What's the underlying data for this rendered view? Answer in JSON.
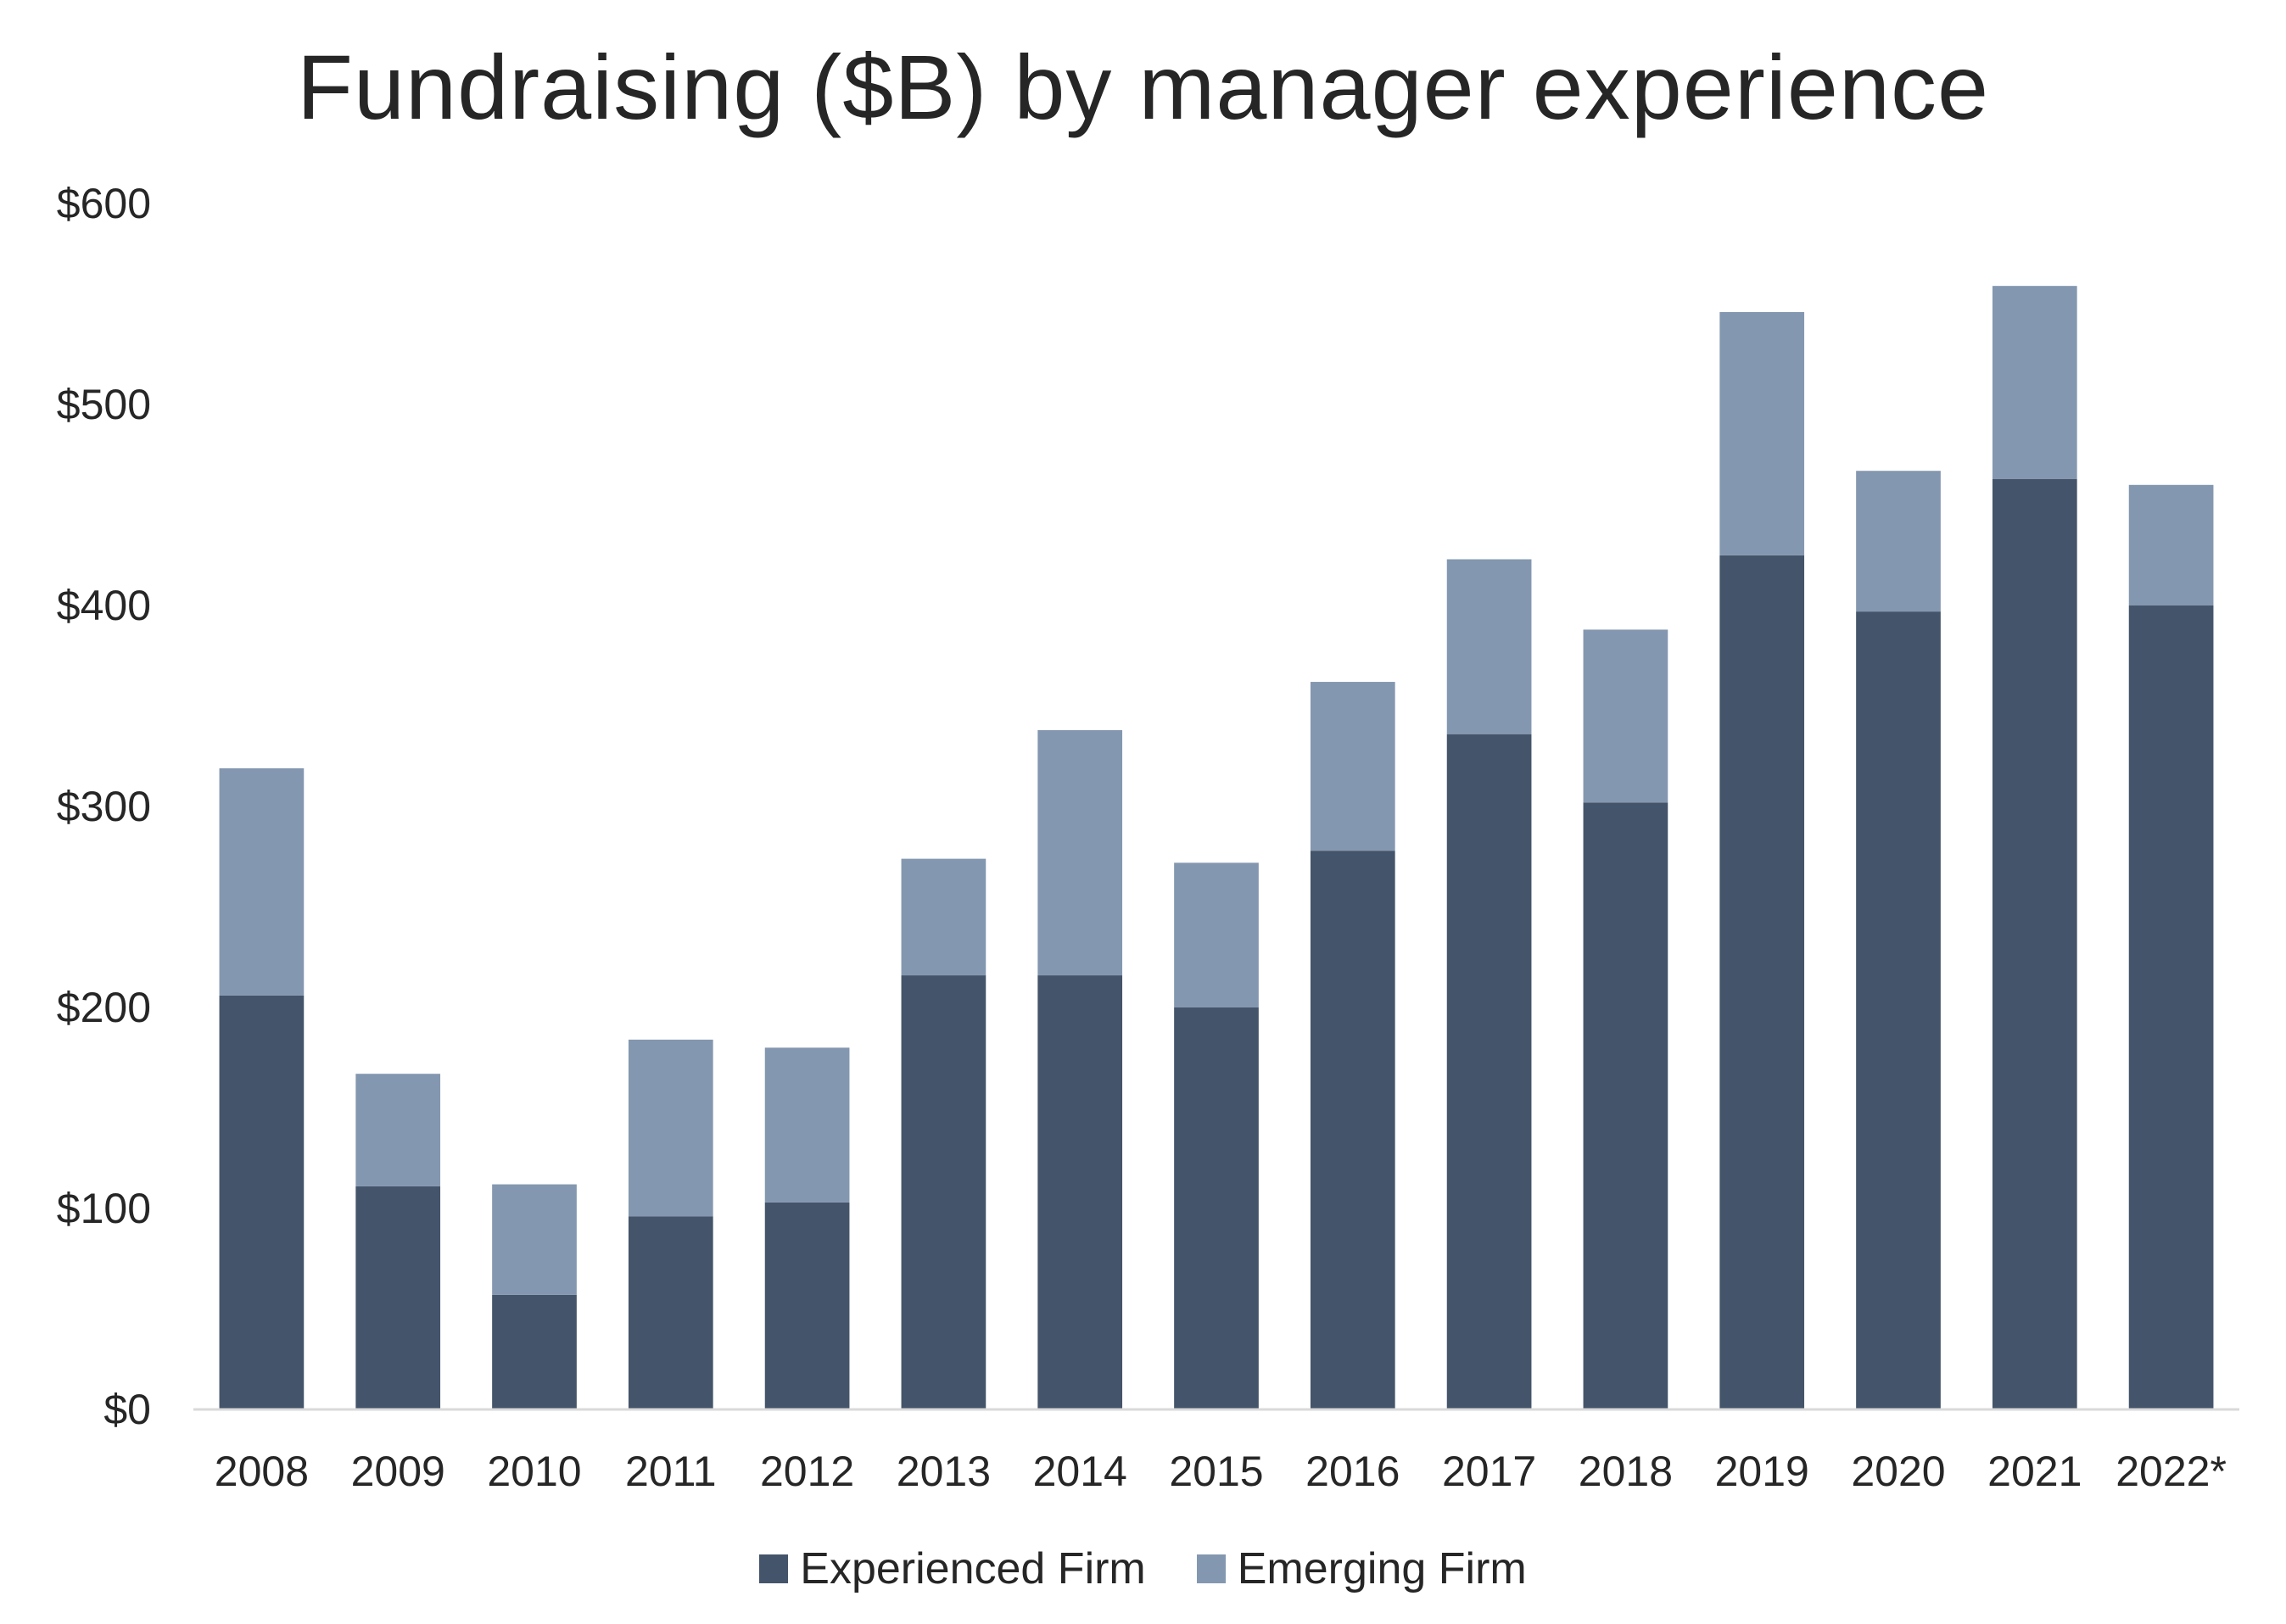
{
  "chart_data": {
    "type": "bar",
    "stacked": true,
    "title": "Fundraising ($B) by manager experience",
    "categories": [
      "2008",
      "2009",
      "2010",
      "2011",
      "2012",
      "2013",
      "2014",
      "2015",
      "2016",
      "2017",
      "2018",
      "2019",
      "2020",
      "2021",
      "2022*"
    ],
    "series": [
      {
        "name": "Experienced Firm",
        "color": "#44546a",
        "values": [
          206,
          111,
          57,
          96,
          103,
          216,
          216,
          200,
          278,
          336,
          302,
          425,
          397,
          463,
          400
        ]
      },
      {
        "name": "Emerging Firm",
        "color": "#8497b0",
        "values": [
          113,
          56,
          55,
          88,
          77,
          58,
          122,
          72,
          84,
          87,
          86,
          121,
          70,
          96,
          60
        ]
      }
    ],
    "ylim": [
      0,
      600
    ],
    "yticks": [
      "$0",
      "$100",
      "$200",
      "$300",
      "$400",
      "$500",
      "$600"
    ],
    "ytick_values": [
      0,
      100,
      200,
      300,
      400,
      500,
      600
    ],
    "grid": false,
    "legend_position": "bottom"
  }
}
